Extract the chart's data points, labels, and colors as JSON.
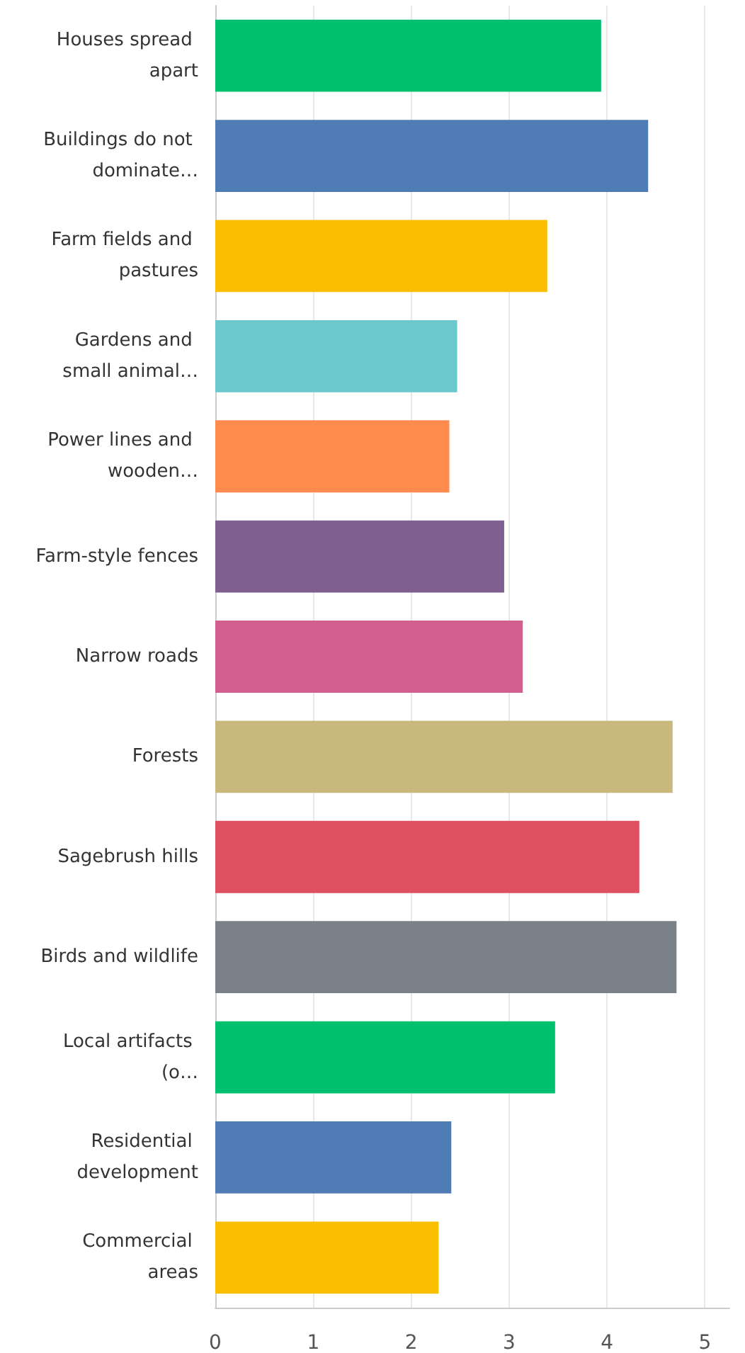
{
  "chart_data": {
    "type": "bar",
    "orientation": "horizontal",
    "categories": [
      "Houses spread apart",
      "Buildings do not dominate…",
      "Farm fields and pastures",
      "Gardens and small animal…",
      "Power lines and wooden…",
      "Farm-style fences",
      "Narrow roads",
      "Forests",
      "Sagebrush hills",
      "Birds and wildlife",
      "Local artifacts (o…",
      "Residential development",
      "Commercial areas"
    ],
    "values": [
      3.94,
      4.42,
      3.39,
      2.47,
      2.39,
      2.95,
      3.14,
      4.67,
      4.33,
      4.71,
      3.47,
      2.41,
      2.28
    ],
    "colors": [
      "#00bf6f",
      "#507cb6",
      "#f9be00",
      "#6bc8cd",
      "#ff8b4f",
      "#7f5f8f",
      "#d25f90",
      "#c8b87b",
      "#de4f5f",
      "#7a8189",
      "#00bf6f",
      "#507cb6",
      "#f9be00"
    ],
    "xlim": [
      0,
      5.25
    ],
    "xticks": [
      0,
      1,
      2,
      3,
      4,
      5
    ],
    "grid": "x"
  }
}
